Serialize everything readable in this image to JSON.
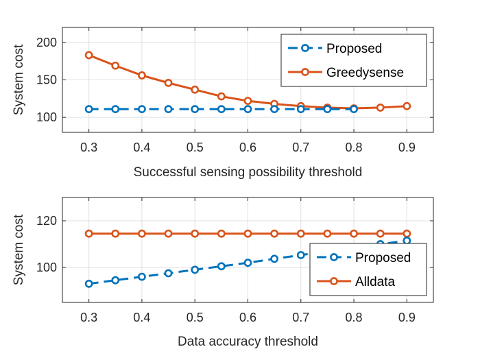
{
  "colors": {
    "proposed": "#0072BD",
    "other": "#D95319",
    "grid": "#DFDFDF",
    "axis": "#262626"
  },
  "chart_data": [
    {
      "type": "line",
      "xlabel": "Successful sensing possibility threshold",
      "ylabel": "System cost",
      "xlim": [
        0.25,
        0.95
      ],
      "ylim": [
        80,
        220
      ],
      "xticks": [
        0.3,
        0.4,
        0.5,
        0.6,
        0.7,
        0.8,
        0.9
      ],
      "xtick_labels": [
        "0.3",
        "0.4",
        "0.5",
        "0.6",
        "0.7",
        "0.8",
        "0.9"
      ],
      "yticks": [
        100,
        150,
        200
      ],
      "ytick_labels": [
        "100",
        "150",
        "200"
      ],
      "grid": true,
      "legend_position": "top-right",
      "series": [
        {
          "name": "Proposed",
          "style": "dashed",
          "color_key": "proposed",
          "x": [
            0.3,
            0.35,
            0.4,
            0.45,
            0.5,
            0.55,
            0.6,
            0.65,
            0.7,
            0.75,
            0.8
          ],
          "y": [
            111,
            111,
            111,
            111,
            111,
            111,
            111,
            111,
            111,
            111,
            111
          ]
        },
        {
          "name": "Greedysense",
          "style": "solid",
          "color_key": "other",
          "x": [
            0.3,
            0.35,
            0.4,
            0.45,
            0.5,
            0.55,
            0.6,
            0.65,
            0.7,
            0.75,
            0.8,
            0.85,
            0.9
          ],
          "y": [
            183,
            169,
            156,
            146,
            137,
            128,
            122,
            118,
            115,
            113,
            112,
            113,
            115
          ]
        }
      ]
    },
    {
      "type": "line",
      "xlabel": "Data accuracy threshold",
      "ylabel": "System cost",
      "xlim": [
        0.25,
        0.95
      ],
      "ylim": [
        85,
        130
      ],
      "xticks": [
        0.3,
        0.4,
        0.5,
        0.6,
        0.7,
        0.8,
        0.9
      ],
      "xtick_labels": [
        "0.3",
        "0.4",
        "0.5",
        "0.6",
        "0.7",
        "0.8",
        "0.9"
      ],
      "yticks": [
        100,
        120
      ],
      "ytick_labels": [
        "100",
        "120"
      ],
      "grid": true,
      "legend_position": "bottom-right",
      "series": [
        {
          "name": "Proposed",
          "style": "dashed",
          "color_key": "proposed",
          "x": [
            0.3,
            0.35,
            0.4,
            0.45,
            0.5,
            0.55,
            0.6,
            0.65,
            0.7,
            0.75,
            0.8,
            0.85,
            0.9
          ],
          "y": [
            93,
            94.5,
            96,
            97.5,
            99,
            100.5,
            102,
            103.7,
            105.3,
            107,
            108.5,
            110,
            111.5
          ]
        },
        {
          "name": "Alldata",
          "style": "solid",
          "color_key": "other",
          "x": [
            0.3,
            0.35,
            0.4,
            0.45,
            0.5,
            0.55,
            0.6,
            0.65,
            0.7,
            0.75,
            0.8,
            0.85,
            0.9
          ],
          "y": [
            114.5,
            114.5,
            114.5,
            114.5,
            114.5,
            114.5,
            114.5,
            114.5,
            114.5,
            114.5,
            114.5,
            114.5,
            114.5
          ]
        }
      ]
    }
  ]
}
